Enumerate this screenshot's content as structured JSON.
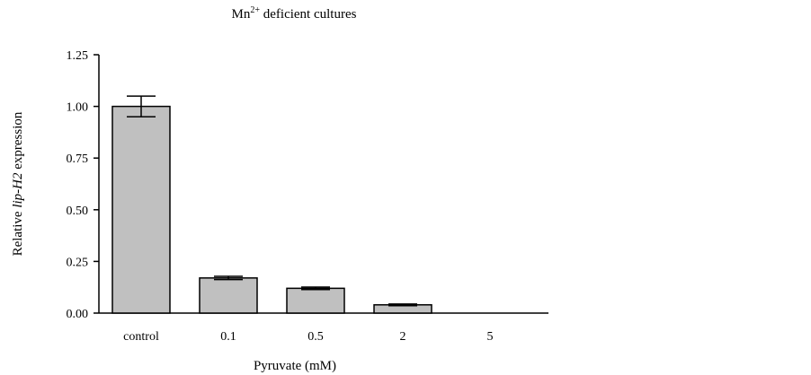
{
  "chart_data": {
    "type": "bar",
    "title": {
      "prefix": "Mn",
      "superscript": "2+",
      "suffix": " deficient cultures"
    },
    "xlabel": "Pyruvate (mM)",
    "ylabel": {
      "prefix": "Relative ",
      "italic": "lip-H2",
      "suffix": " expression"
    },
    "categories": [
      "control",
      "0.1",
      "0.5",
      "2",
      "5"
    ],
    "values": [
      1.0,
      0.17,
      0.12,
      0.04,
      0.0
    ],
    "errors": [
      0.05,
      0.008,
      0.006,
      0.004,
      0.0
    ],
    "ylim": [
      0,
      1.25
    ],
    "yticks": [
      "0.00",
      "0.25",
      "0.50",
      "0.75",
      "1.00",
      "1.25"
    ],
    "bar_color": "#c0c0c0",
    "edge_color": "#000000",
    "grid": false,
    "legend": "none"
  }
}
